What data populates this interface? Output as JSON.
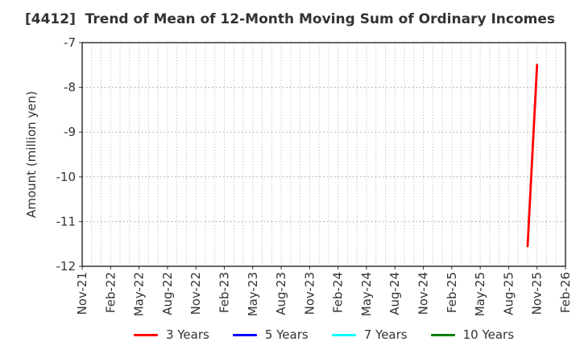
{
  "chart_data": {
    "type": "line",
    "title": "[4412]  Trend of Mean of 12-Month Moving Sum of Ordinary Incomes",
    "ylabel": "Amount (million yen)",
    "x_start": "Nov-21",
    "x_end": "Feb-26",
    "x_tick_step_months": 3,
    "x_tick_labels": [
      "Nov-21",
      "Feb-22",
      "May-22",
      "Aug-22",
      "Nov-22",
      "Feb-23",
      "May-23",
      "Aug-23",
      "Nov-23",
      "Feb-24",
      "May-24",
      "Aug-24",
      "Nov-24",
      "Feb-25",
      "May-25",
      "Aug-25",
      "Nov-25",
      "Feb-26"
    ],
    "y_ticks": [
      -7,
      -8,
      -9,
      -10,
      -11,
      -12
    ],
    "ylim": [
      -12,
      -7
    ],
    "grid": "dotted",
    "legend_position": "bottom",
    "series": [
      {
        "name": "3 Years",
        "color": "#ff0000",
        "points": [
          {
            "x": "Oct-25",
            "y": -11.55
          },
          {
            "x": "Nov-25",
            "y": -7.5
          }
        ]
      },
      {
        "name": "5 Years",
        "color": "#0000ff",
        "points": []
      },
      {
        "name": "7 Years",
        "color": "#00ffff",
        "points": []
      },
      {
        "name": "10 Years",
        "color": "#008000",
        "points": []
      }
    ]
  }
}
